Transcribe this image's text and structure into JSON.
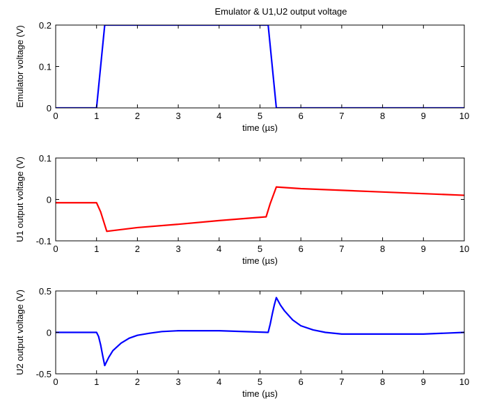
{
  "chart_data": [
    {
      "type": "line",
      "title": "Emulator & U1,U2 output voltage",
      "xlabel": "time (µs)",
      "ylabel": "Emulator voltage (V)",
      "xlim": [
        0,
        10
      ],
      "ylim": [
        0,
        0.2
      ],
      "xticks": [
        "0",
        "1",
        "2",
        "3",
        "4",
        "5",
        "6",
        "7",
        "8",
        "9",
        "10"
      ],
      "yticks": [
        "0",
        "0.1",
        "0.2"
      ],
      "grid": false,
      "series": [
        {
          "color": "#0000ff",
          "x": [
            0,
            1.0,
            1.2,
            5.2,
            5.4,
            10
          ],
          "y": [
            0,
            0,
            0.2,
            0.2,
            0,
            0
          ],
          "note_clip": true
        }
      ]
    },
    {
      "type": "line",
      "title": "",
      "xlabel": "time (µs)",
      "ylabel": "U1 output voltage (V)",
      "xlim": [
        0,
        10
      ],
      "ylim": [
        -0.1,
        0.1
      ],
      "xticks": [
        "0",
        "1",
        "2",
        "3",
        "4",
        "5",
        "6",
        "7",
        "8",
        "9",
        "10"
      ],
      "yticks": [
        "-0.1",
        "0",
        "0.1"
      ],
      "grid": false,
      "series": [
        {
          "color": "#ff0000",
          "x": [
            0,
            1.0,
            1.1,
            1.25,
            2,
            3,
            4,
            5.15,
            5.25,
            5.4,
            6,
            7,
            8,
            9,
            10
          ],
          "y": [
            -0.008,
            -0.008,
            -0.03,
            -0.077,
            -0.068,
            -0.06,
            -0.051,
            -0.042,
            -0.01,
            0.03,
            0.026,
            0.022,
            0.018,
            0.014,
            0.01
          ]
        }
      ]
    },
    {
      "type": "line",
      "title": "",
      "xlabel": "time (µs)",
      "ylabel": "U2 output voltage (V)",
      "xlim": [
        0,
        10
      ],
      "ylim": [
        -0.5,
        0.5
      ],
      "xticks": [
        "0",
        "1",
        "2",
        "3",
        "4",
        "5",
        "6",
        "7",
        "8",
        "9",
        "10"
      ],
      "yticks": [
        "-0.5",
        "0",
        "0.5"
      ],
      "grid": false,
      "series": [
        {
          "color": "#0000ff",
          "x": [
            0,
            1.0,
            1.05,
            1.1,
            1.15,
            1.2,
            1.3,
            1.4,
            1.6,
            1.8,
            2.0,
            2.3,
            2.6,
            3.0,
            4.0,
            5.2,
            5.25,
            5.3,
            5.35,
            5.4,
            5.5,
            5.6,
            5.8,
            6.0,
            6.3,
            6.6,
            7.0,
            8.0,
            9.0,
            10
          ],
          "y": [
            0,
            0,
            -0.05,
            -0.15,
            -0.28,
            -0.4,
            -0.3,
            -0.22,
            -0.13,
            -0.07,
            -0.035,
            -0.01,
            0.01,
            0.02,
            0.02,
            0.0,
            0.1,
            0.22,
            0.33,
            0.42,
            0.33,
            0.26,
            0.15,
            0.08,
            0.03,
            0.0,
            -0.02,
            -0.02,
            -0.02,
            0
          ]
        }
      ]
    }
  ]
}
